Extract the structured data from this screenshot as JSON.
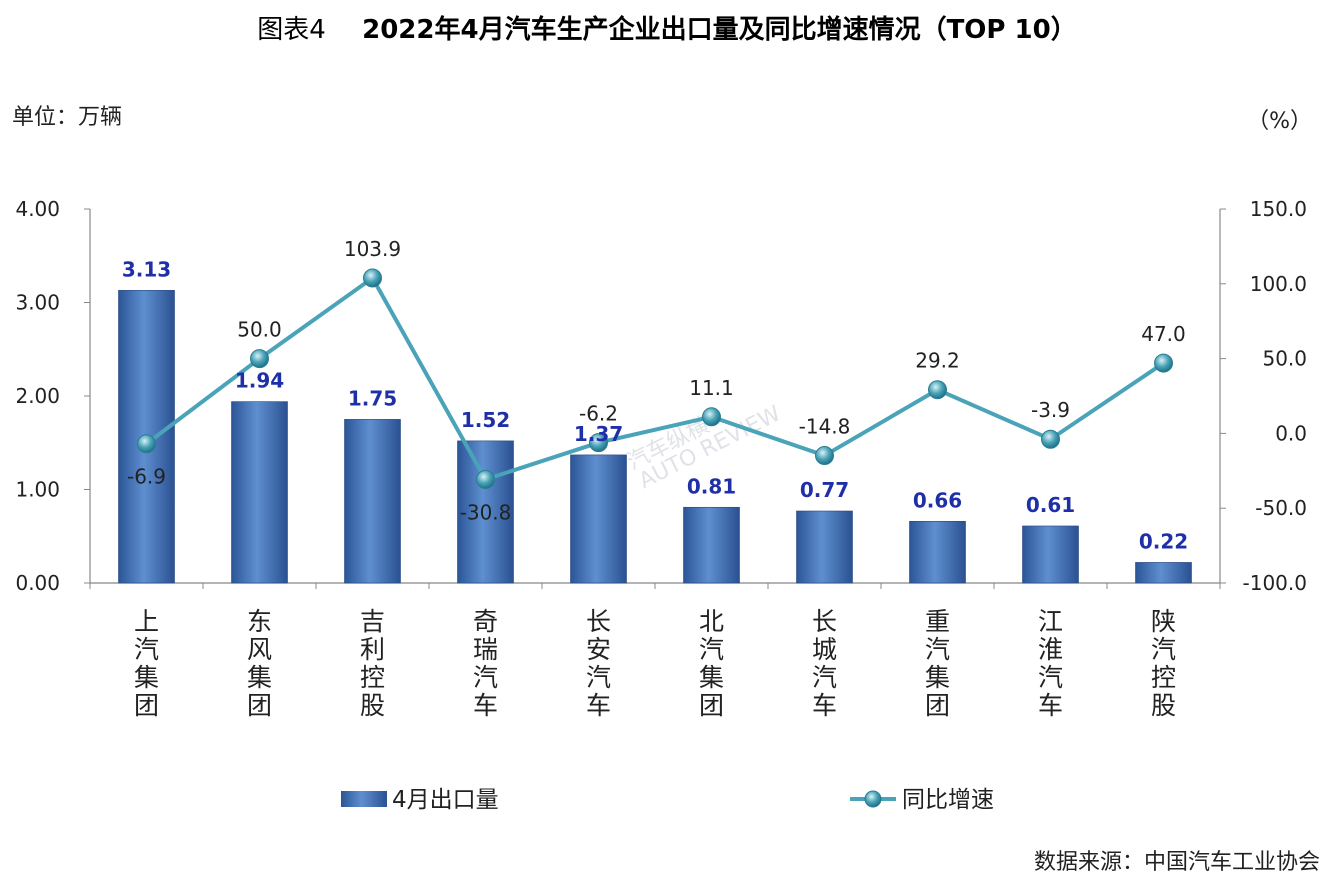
{
  "chart_data": {
    "type": "bar",
    "title_prefix": "图表4",
    "title": "2022年4月汽车生产企业出口量及同比增速情况（TOP 10）",
    "left_unit": "单位：万辆",
    "right_unit": "（%）",
    "source": "数据来源：中国汽车工业协会",
    "watermark": {
      "cn": "汽车纵横",
      "en": "AUTO REVIEW"
    },
    "categories": [
      "上汽集团",
      "东风集团",
      "吉利控股",
      "奇瑞汽车",
      "长安汽车",
      "北汽集团",
      "长城汽车",
      "重汽集团",
      "江淮汽车",
      "陕汽控股"
    ],
    "series": [
      {
        "name": "4月出口量",
        "type": "bar",
        "axis": "left",
        "values": [
          3.13,
          1.94,
          1.75,
          1.52,
          1.37,
          0.81,
          0.77,
          0.66,
          0.61,
          0.22
        ],
        "labels": [
          "3.13",
          "1.94",
          "1.75",
          "1.52",
          "1.37",
          "0.81",
          "0.77",
          "0.66",
          "0.61",
          "0.22"
        ],
        "color": "#3f6fb5"
      },
      {
        "name": "同比增速",
        "type": "line",
        "axis": "right",
        "values": [
          -6.9,
          50.0,
          103.9,
          -30.8,
          -6.2,
          11.1,
          -14.8,
          29.2,
          -3.9,
          47.0
        ],
        "labels": [
          "-6.9",
          "50.0",
          "103.9",
          "-30.8",
          "-6.2",
          "11.1",
          "-14.8",
          "29.2",
          "-3.9",
          "47.0"
        ],
        "color": "#4aa3b8"
      }
    ],
    "y_left": {
      "min": 0,
      "max": 4,
      "ticks": [
        "0.00",
        "1.00",
        "2.00",
        "3.00",
        "4.00"
      ]
    },
    "y_right": {
      "min": -100,
      "max": 150,
      "ticks": [
        "-100.0",
        "-50.0",
        "0.0",
        "50.0",
        "100.0",
        "150.0"
      ]
    },
    "legend": [
      {
        "name": "4月出口量",
        "kind": "bar"
      },
      {
        "name": "同比增速",
        "kind": "line"
      }
    ],
    "legend_position": "bottom",
    "grid": false
  }
}
